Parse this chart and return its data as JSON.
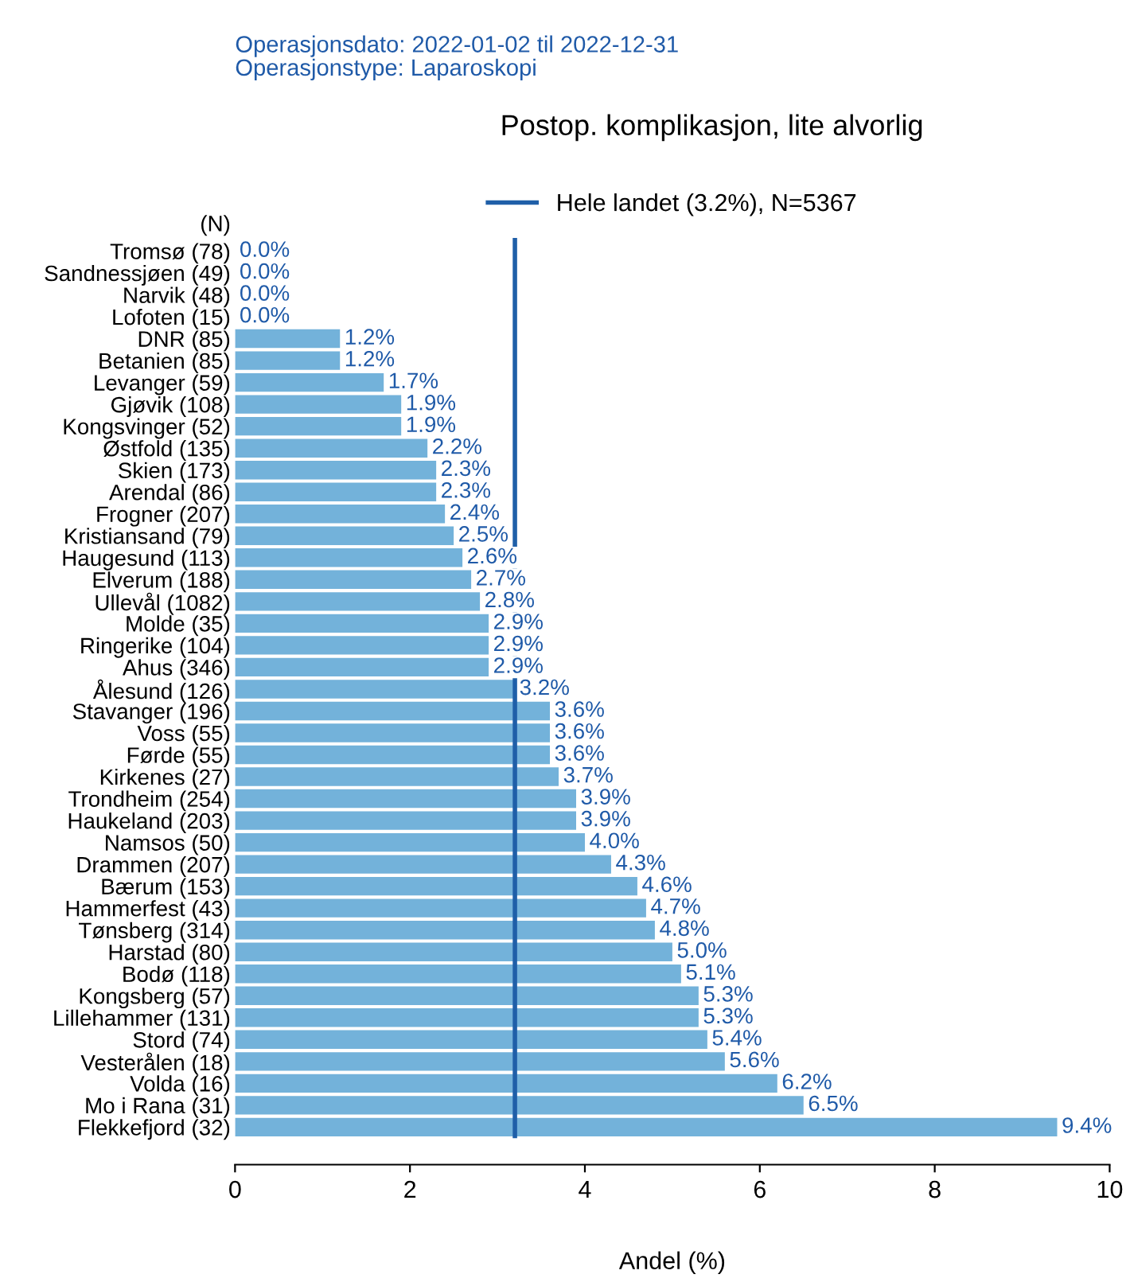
{
  "chart_data": {
    "type": "bar",
    "orientation": "horizontal",
    "title": "Postop. komplikasjon, lite alvorlig",
    "subtitle": "Operasjonsdato: 2022-01-02 til 2022-12-31\nOperasjonstype: Laparoskopi",
    "xlabel": "Andel (%)",
    "annotations": [
      "(N)"
    ],
    "categories": [
      "Tromsø (78)",
      "Sandnessjøen (49)",
      "Narvik (48)",
      "Lofoten (15)",
      "DNR (85)",
      "Betanien (85)",
      "Levanger (59)",
      "Gjøvik (108)",
      "Kongsvinger (52)",
      "Østfold (135)",
      "Skien (173)",
      "Arendal (86)",
      "Frogner (207)",
      "Kristiansand (79)",
      "Haugesund (113)",
      "Elverum (188)",
      "Ullevål (1082)",
      "Molde (35)",
      "Ringerike (104)",
      "Ahus (346)",
      "Ålesund (126)",
      "Stavanger (196)",
      "Voss (55)",
      "Førde (55)",
      "Kirkenes (27)",
      "Trondheim (254)",
      "Haukeland (203)",
      "Namsos (50)",
      "Drammen (207)",
      "Bærum (153)",
      "Hammerfest (43)",
      "Tønsberg (314)",
      "Harstad (80)",
      "Bodø (118)",
      "Kongsberg (57)",
      "Lillehammer (131)",
      "Stord (74)",
      "Vesterålen (18)",
      "Volda (16)",
      "Mo i Rana (31)",
      "Flekkefjord (32)"
    ],
    "values": [
      0.0,
      0.0,
      0.0,
      0.0,
      1.2,
      1.2,
      1.7,
      1.9,
      1.9,
      2.2,
      2.3,
      2.3,
      2.4,
      2.5,
      2.6,
      2.7,
      2.8,
      2.9,
      2.9,
      2.9,
      3.2,
      3.6,
      3.6,
      3.6,
      3.7,
      3.9,
      3.9,
      4.0,
      4.3,
      4.6,
      4.7,
      4.8,
      5.0,
      5.1,
      5.3,
      5.3,
      5.4,
      5.6,
      6.2,
      6.5,
      9.4
    ],
    "value_labels": [
      "0.0%",
      "0.0%",
      "0.0%",
      "0.0%",
      "1.2%",
      "1.2%",
      "1.7%",
      "1.9%",
      "1.9%",
      "2.2%",
      "2.3%",
      "2.3%",
      "2.4%",
      "2.5%",
      "2.6%",
      "2.7%",
      "2.8%",
      "2.9%",
      "2.9%",
      "2.9%",
      "3.2%",
      "3.6%",
      "3.6%",
      "3.6%",
      "3.7%",
      "3.9%",
      "3.9%",
      "4.0%",
      "4.3%",
      "4.6%",
      "4.7%",
      "4.8%",
      "5.0%",
      "5.1%",
      "5.3%",
      "5.3%",
      "5.4%",
      "5.6%",
      "6.2%",
      "6.5%",
      "9.4%"
    ],
    "color": "#73b2da",
    "xlim": [
      0,
      10
    ],
    "xticks": [
      0,
      2,
      4,
      6,
      8,
      10
    ],
    "ref_lines": [
      {
        "axis": "x",
        "value": 3.2,
        "label": "Hele landet (3.2%), N=5367",
        "color": "#1f5fa8"
      }
    ],
    "legend": "top",
    "grid": false
  }
}
